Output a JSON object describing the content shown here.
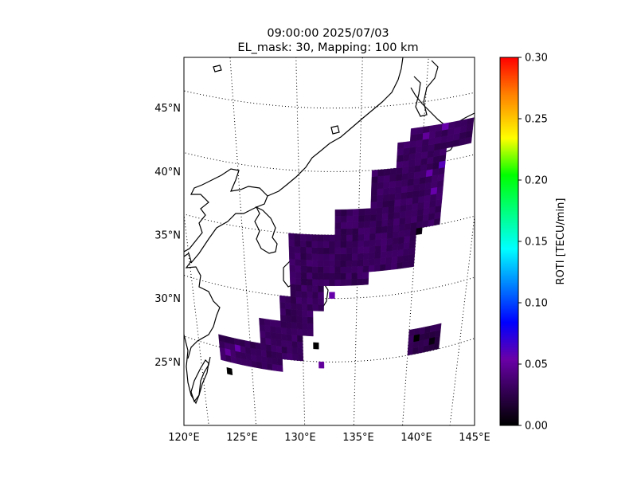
{
  "title": {
    "line1": "09:00:00 2025/07/03",
    "line2": "EL_mask: 30, Mapping: 100 km"
  },
  "colorbar": {
    "label": "ROTI [TECU/min]",
    "ticks": [
      "0.00",
      "0.05",
      "0.10",
      "0.15",
      "0.20",
      "0.25",
      "0.30"
    ],
    "range": [
      0.0,
      0.3
    ]
  },
  "chart_data": {
    "type": "heatmap",
    "map_extent": {
      "lon": [
        120,
        145
      ],
      "lat": [
        20,
        49
      ]
    },
    "lon_ticks": [
      "120°E",
      "125°E",
      "130°E",
      "135°E",
      "140°E",
      "145°E"
    ],
    "lat_ticks": [
      "25°N",
      "30°N",
      "35°N",
      "40°N",
      "45°N"
    ],
    "cell_size_deg": 0.5,
    "base_value": 0.03,
    "regions": [
      {
        "lon": [
          122,
          128
        ],
        "lat": [
          24,
          26
        ],
        "value": 0.03
      },
      {
        "lon": [
          126,
          130
        ],
        "lat": [
          25,
          28
        ],
        "value": 0.03
      },
      {
        "lon": [
          128,
          131
        ],
        "lat": [
          27,
          30
        ],
        "value": 0.03
      },
      {
        "lon": [
          129,
          132
        ],
        "lat": [
          29,
          32
        ],
        "value": 0.03
      },
      {
        "lon": [
          129,
          136
        ],
        "lat": [
          31,
          35
        ],
        "value": 0.03
      },
      {
        "lon": [
          133,
          140
        ],
        "lat": [
          32,
          37
        ],
        "value": 0.03
      },
      {
        "lon": [
          136,
          142
        ],
        "lat": [
          35,
          40
        ],
        "value": 0.03
      },
      {
        "lon": [
          138,
          142
        ],
        "lat": [
          39,
          42
        ],
        "value": 0.03
      },
      {
        "lon": [
          139,
          144
        ],
        "lat": [
          41,
          43
        ],
        "value": 0.03
      },
      {
        "lon": [
          140,
          143
        ],
        "lat": [
          25,
          27
        ],
        "value": 0.025
      }
    ],
    "hotspots": [
      {
        "lon": 123.5,
        "lat": 25.0,
        "value": 0.055
      },
      {
        "lon": 122.5,
        "lat": 24.5,
        "value": 0.05
      },
      {
        "lon": 140.5,
        "lat": 39.0,
        "value": 0.055
      },
      {
        "lon": 141.5,
        "lat": 39.5,
        "value": 0.06
      },
      {
        "lon": 141.0,
        "lat": 37.5,
        "value": 0.055
      },
      {
        "lon": 140.0,
        "lat": 42.0,
        "value": 0.05
      },
      {
        "lon": 141.5,
        "lat": 42.5,
        "value": 0.055
      },
      {
        "lon": 132.5,
        "lat": 30.0,
        "value": 0.055
      },
      {
        "lon": 131.5,
        "lat": 24.5,
        "value": 0.05
      },
      {
        "lon": 122.5,
        "lat": 23.0,
        "value": 0.0
      },
      {
        "lon": 131.0,
        "lat": 26.0,
        "value": 0.0
      },
      {
        "lon": 140.5,
        "lat": 26.0,
        "value": 0.0
      },
      {
        "lon": 142.0,
        "lat": 25.5,
        "value": 0.005
      },
      {
        "lon": 140.0,
        "lat": 34.5,
        "value": 0.005
      }
    ]
  }
}
